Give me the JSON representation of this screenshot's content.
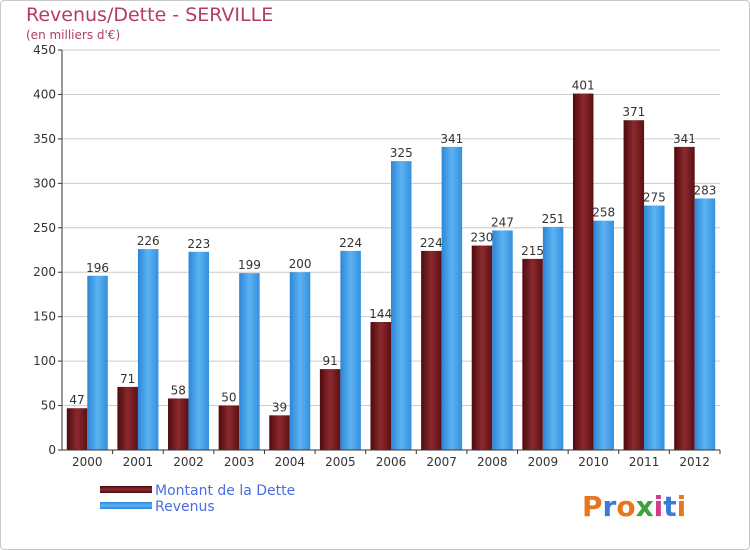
{
  "colors": {
    "dette": "#7a1a1f",
    "revenus": "#3d9ae6",
    "axis": "#333333",
    "grid": "#cccccc",
    "title": "#b43a6d"
  },
  "legend": {
    "dette_label": "Montant de la Dette",
    "revenus_label": "Revenus"
  },
  "logo": {
    "text": "Proxiti",
    "letter_colors": [
      "#e8761c",
      "#3a7bd5",
      "#e8761c",
      "#3aa33a",
      "#d23a8a",
      "#3a7bd5",
      "#e8761c"
    ]
  },
  "chart_data": {
    "type": "bar",
    "title": "Revenus/Dette - SERVILLE",
    "subtitle": "(en milliers d'€)",
    "xlabel": "",
    "ylabel": "",
    "categories": [
      "2000",
      "2001",
      "2002",
      "2003",
      "2004",
      "2005",
      "2006",
      "2007",
      "2008",
      "2009",
      "2010",
      "2011",
      "2012"
    ],
    "series": [
      {
        "name": "Montant de la Dette",
        "values": [
          47,
          71,
          58,
          50,
          39,
          91,
          144,
          224,
          230,
          215,
          401,
          371,
          341
        ]
      },
      {
        "name": "Revenus",
        "values": [
          196,
          226,
          223,
          199,
          200,
          224,
          325,
          341,
          247,
          251,
          258,
          275,
          283
        ]
      }
    ],
    "ylim": [
      0,
      450
    ],
    "yticks": [
      0,
      50,
      100,
      150,
      200,
      250,
      300,
      350,
      400,
      450
    ],
    "grid": true,
    "legend_position": "bottom-left"
  }
}
